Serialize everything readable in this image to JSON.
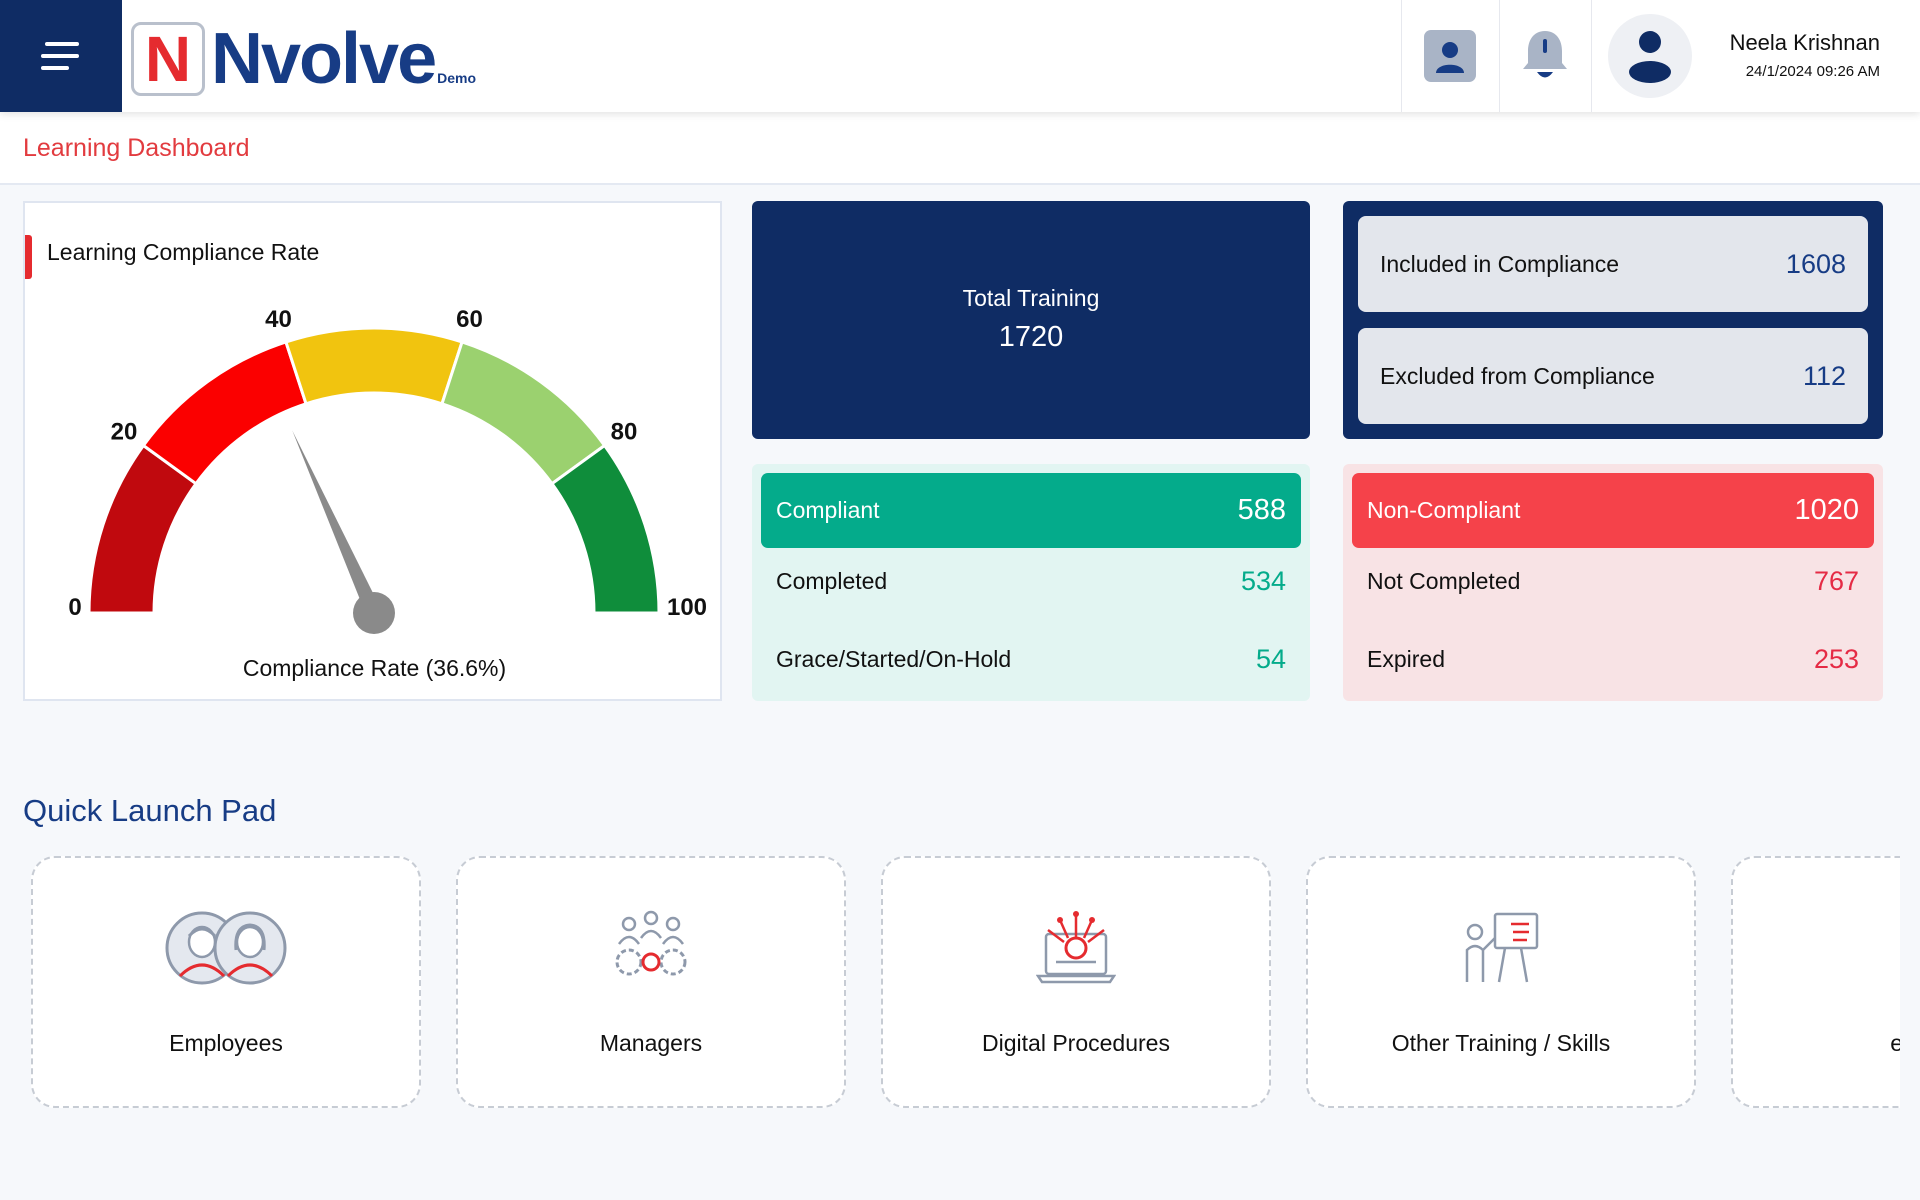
{
  "header": {
    "menu_icon": "hamburger-icon",
    "logo": {
      "letter": "N",
      "name": "Nvolve",
      "badge": "Demo"
    },
    "icons": [
      "contact-card-icon",
      "bell-icon",
      "user-avatar-icon"
    ],
    "user": {
      "name": "Neela Krishnan",
      "datetime": "24/1/2024  09:26 AM"
    }
  },
  "breadcrumb": {
    "title": "Learning Dashboard"
  },
  "gauge": {
    "title": "Learning Compliance Rate",
    "caption": "Compliance Rate (36.6%)",
    "value": 36.6,
    "min": 0,
    "max": 100,
    "ticks": [
      "0",
      "20",
      "40",
      "60",
      "80",
      "100"
    ],
    "segments": [
      {
        "from": 0,
        "to": 20,
        "color": "#c0090e"
      },
      {
        "from": 20,
        "to": 40,
        "color": "#fb0000"
      },
      {
        "from": 40,
        "to": 60,
        "color": "#f1c40f"
      },
      {
        "from": 60,
        "to": 80,
        "color": "#9bd16f"
      },
      {
        "from": 80,
        "to": 100,
        "color": "#0f8d3b"
      }
    ],
    "needle_color": "#8a8a8a"
  },
  "total": {
    "label": "Total Training",
    "value": "1720"
  },
  "inclusion": {
    "included": {
      "label": "Included in Compliance",
      "value": "1608"
    },
    "excluded": {
      "label": "Excluded from Compliance",
      "value": "112"
    }
  },
  "compliant": {
    "label": "Compliant",
    "value": "588",
    "rows": [
      {
        "label": "Completed",
        "value": "534"
      },
      {
        "label": "Grace/Started/On-Hold",
        "value": "54"
      }
    ]
  },
  "non_compliant": {
    "label": "Non-Compliant",
    "value": "1020",
    "rows": [
      {
        "label": "Not Completed",
        "value": "767"
      },
      {
        "label": "Expired",
        "value": "253"
      }
    ]
  },
  "quick_launch": {
    "title": "Quick Launch Pad",
    "tiles": [
      {
        "label": "Employees",
        "icon": "employees-icon"
      },
      {
        "label": "Managers",
        "icon": "managers-icon"
      },
      {
        "label": "Digital Procedures",
        "icon": "digital-procedures-icon"
      },
      {
        "label": "Other Training / Skills",
        "icon": "training-skills-icon"
      },
      {
        "label": "eLearn",
        "icon": "elearning-icon"
      }
    ]
  },
  "colors": {
    "navy": "#0f2c64",
    "brand_red": "#e52b2f",
    "compliant_green": "#04ab8b",
    "noncompliant_red": "#f5424a",
    "page_bg": "#f6f8fb"
  }
}
